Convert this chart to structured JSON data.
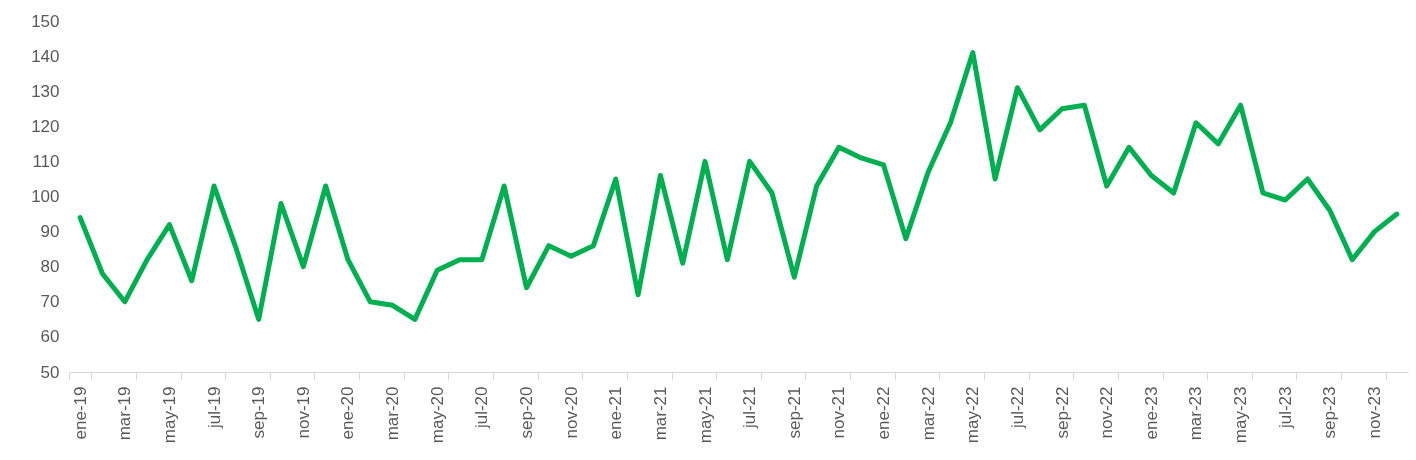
{
  "chart_data": {
    "type": "line",
    "categories": [
      "ene-19",
      null,
      "mar-19",
      null,
      "may-19",
      null,
      "jul-19",
      null,
      "sep-19",
      null,
      "nov-19",
      null,
      "ene-20",
      null,
      "mar-20",
      null,
      "may-20",
      null,
      "jul-20",
      null,
      "sep-20",
      null,
      "nov-20",
      null,
      "ene-21",
      null,
      "mar-21",
      null,
      "may-21",
      null,
      "jul-21",
      null,
      "sep-21",
      null,
      "nov-21",
      null,
      "ene-22",
      null,
      "mar-22",
      null,
      "may-22",
      null,
      "jul-22",
      null,
      "sep-22",
      null,
      "nov-22",
      null,
      "ene-23",
      null,
      "mar-23",
      null,
      "may-23",
      null,
      "jul-23",
      null,
      "sep-23",
      null,
      "nov-23",
      null
    ],
    "series": [
      {
        "color": "#00b050",
        "values": [
          94,
          78,
          70,
          82,
          92,
          76,
          103,
          85,
          65,
          98,
          80,
          103,
          82,
          70,
          69,
          65,
          79,
          82,
          82,
          103,
          74,
          86,
          83,
          86,
          105,
          72,
          106,
          81,
          110,
          82,
          110,
          101,
          77,
          103,
          114,
          111,
          109,
          88,
          107,
          121,
          141,
          105,
          131,
          119,
          125,
          126,
          103,
          114,
          106,
          101,
          121,
          115,
          126,
          101,
          99,
          105,
          96,
          82,
          90,
          95
        ]
      }
    ],
    "ylim": [
      50,
      150
    ],
    "yticks": [
      50,
      60,
      70,
      80,
      90,
      100,
      110,
      120,
      130,
      140,
      150
    ],
    "grid": false,
    "marker": "none",
    "line_style": "solid"
  }
}
